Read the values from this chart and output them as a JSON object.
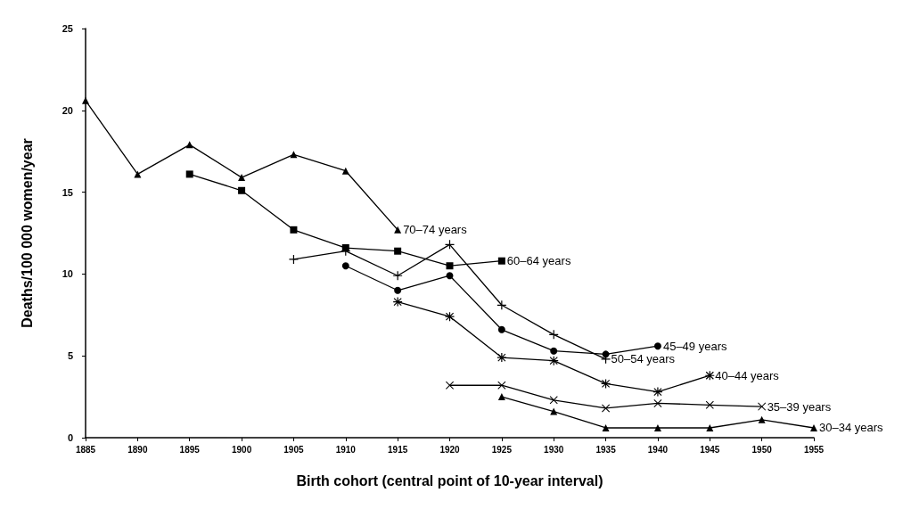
{
  "chart_data": {
    "type": "line",
    "xlabel": "Birth cohort (central point of 10-year interval)",
    "ylabel": "Deaths/100 000 women/year",
    "xlim": [
      1885,
      1955
    ],
    "xticks": [
      1885,
      1890,
      1895,
      1900,
      1905,
      1910,
      1915,
      1920,
      1925,
      1930,
      1935,
      1940,
      1945,
      1950,
      1955
    ],
    "ylim": [
      0,
      25
    ],
    "yticks": [
      0,
      5,
      10,
      15,
      20,
      25
    ],
    "grid": false,
    "legend": false,
    "series": [
      {
        "name": "70–74 years",
        "color": "#000000",
        "marker": "triangle",
        "x": [
          1885,
          1890,
          1895,
          1900,
          1905,
          1910,
          1915
        ],
        "values": [
          20.6,
          16.1,
          17.9,
          15.9,
          17.3,
          16.3,
          12.7
        ]
      },
      {
        "name": "60–64 years",
        "color": "#000000",
        "marker": "square",
        "x": [
          1895,
          1900,
          1905,
          1910,
          1915,
          1920,
          1925
        ],
        "values": [
          16.1,
          15.1,
          12.7,
          11.6,
          11.4,
          10.5,
          10.8
        ]
      },
      {
        "name": "50–54 years",
        "color": "#000000",
        "marker": "cross",
        "x": [
          1905,
          1910,
          1915,
          1920,
          1925,
          1930,
          1935
        ],
        "values": [
          10.9,
          11.4,
          9.9,
          11.8,
          8.1,
          6.3,
          4.8
        ]
      },
      {
        "name": "45–49 years",
        "color": "#000000",
        "marker": "circle",
        "x": [
          1910,
          1915,
          1920,
          1925,
          1930,
          1935,
          1940
        ],
        "values": [
          10.5,
          9.0,
          9.9,
          6.6,
          5.3,
          5.1,
          5.6
        ]
      },
      {
        "name": "40–44 years",
        "color": "#000000",
        "marker": "star",
        "x": [
          1915,
          1920,
          1925,
          1930,
          1935,
          1940,
          1945
        ],
        "values": [
          8.3,
          7.4,
          4.9,
          4.7,
          3.3,
          2.8,
          3.8
        ]
      },
      {
        "name": "35–39 years",
        "color": "#000000",
        "marker": "x",
        "x": [
          1920,
          1925,
          1930,
          1935,
          1940,
          1945,
          1950
        ],
        "values": [
          3.2,
          3.2,
          2.3,
          1.8,
          2.1,
          2.0,
          1.9
        ]
      },
      {
        "name": "30–34 years",
        "color": "#000000",
        "marker": "triangle",
        "x": [
          1925,
          1930,
          1935,
          1940,
          1945,
          1950,
          1955
        ],
        "values": [
          2.5,
          1.6,
          0.6,
          0.6,
          0.6,
          1.1,
          0.6
        ]
      }
    ]
  }
}
